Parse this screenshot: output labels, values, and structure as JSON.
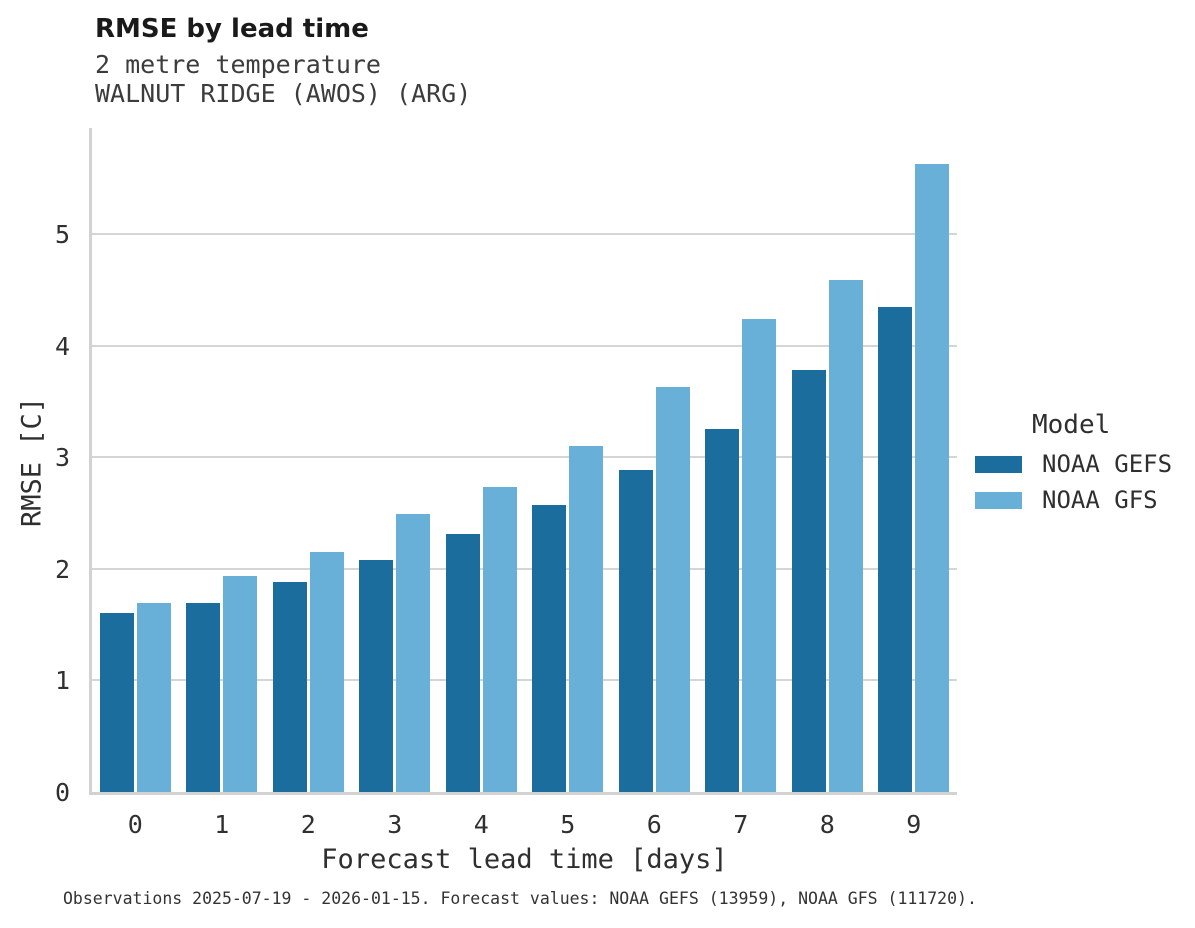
{
  "header": {
    "title": "RMSE by lead time",
    "subtitle_line1": "2 metre temperature",
    "subtitle_line2": "WALNUT RIDGE (AWOS) (ARG)"
  },
  "chart_data": {
    "type": "bar",
    "title": "RMSE by lead time",
    "subtitle": [
      "2 metre temperature",
      "WALNUT RIDGE (AWOS) (ARG)"
    ],
    "categories": [
      "0",
      "1",
      "2",
      "3",
      "4",
      "5",
      "6",
      "7",
      "8",
      "9"
    ],
    "series": [
      {
        "name": "NOAA GEFS",
        "color": "#1A6D9C",
        "values": [
          1.6,
          1.69,
          1.88,
          2.08,
          2.31,
          2.57,
          2.89,
          3.25,
          3.78,
          4.35
        ]
      },
      {
        "name": "NOAA GFS",
        "color": "#69B0D8",
        "values": [
          1.69,
          1.94,
          2.15,
          2.49,
          2.73,
          3.1,
          3.63,
          4.24,
          4.59,
          5.63
        ]
      }
    ],
    "xlabel": "Forecast lead time [days]",
    "ylabel": "RMSE [C]",
    "ylim": [
      0,
      5.95
    ],
    "yticks": [
      0,
      1,
      2,
      3,
      4,
      5
    ],
    "grid": true,
    "legend_title": "Model",
    "legend_position": "right",
    "colors": {
      "gridline": "#d5d5d5",
      "axis_line": "#d2d2d2"
    }
  },
  "footer": {
    "text": "Observations 2025-07-19 - 2026-01-15. Forecast values: NOAA GEFS (13959), NOAA GFS (111720)."
  }
}
